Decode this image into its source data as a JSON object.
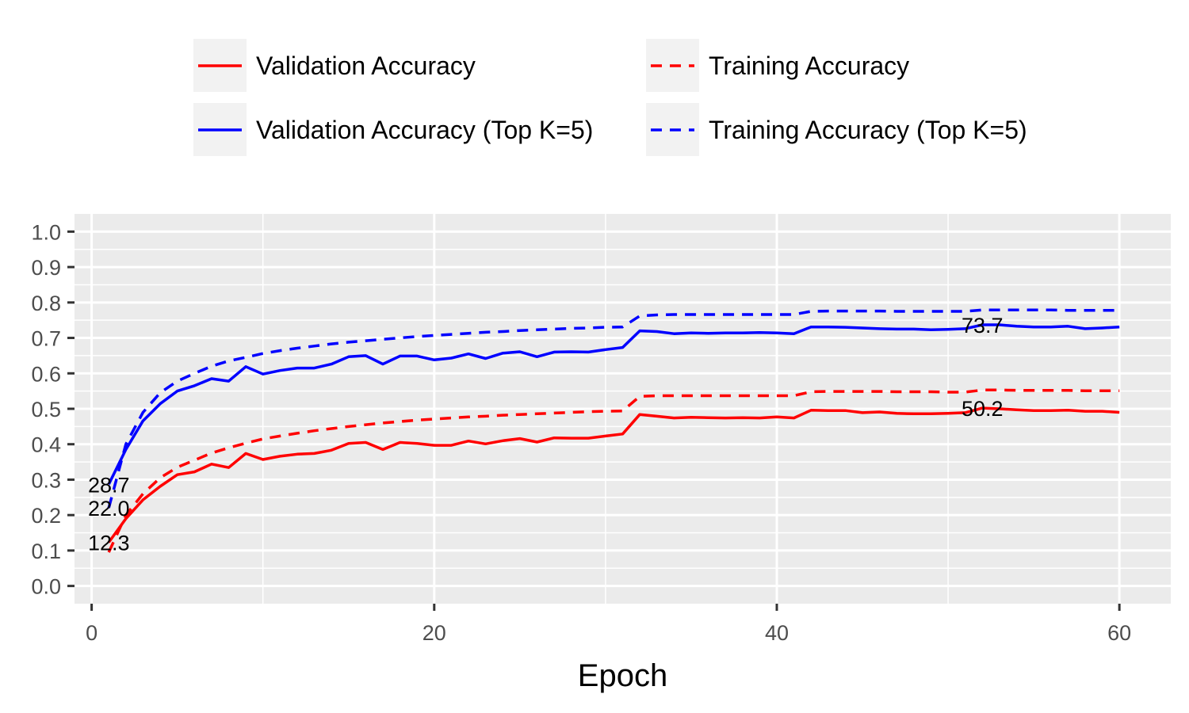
{
  "chart_data": {
    "type": "line",
    "xlabel": "Epoch",
    "ylabel": "",
    "xlim": [
      -1,
      63
    ],
    "ylim": [
      -0.05,
      1.05
    ],
    "x_ticks": [
      0,
      20,
      40,
      60
    ],
    "x_tick_labels": [
      "0",
      "20",
      "40",
      "60"
    ],
    "y_ticks": [
      0.0,
      0.1,
      0.2,
      0.3,
      0.4,
      0.5,
      0.6,
      0.7,
      0.8,
      0.9,
      1.0
    ],
    "y_tick_labels": [
      "0.0",
      "0.1",
      "0.2",
      "0.3",
      "0.4",
      "0.5",
      "0.6",
      "0.7",
      "0.8",
      "0.9",
      "1.0"
    ],
    "grid": true,
    "legend_position": "top",
    "panel_background": "#ebebeb",
    "series": [
      {
        "name": "Validation Accuracy",
        "color": "#ff0000",
        "dash": "solid",
        "x": [
          1,
          2,
          3,
          4,
          5,
          6,
          7,
          8,
          9,
          10,
          11,
          12,
          13,
          14,
          15,
          16,
          17,
          18,
          19,
          20,
          21,
          22,
          23,
          24,
          25,
          26,
          27,
          28,
          29,
          30,
          31,
          32,
          33,
          34,
          35,
          36,
          37,
          38,
          39,
          40,
          41,
          42,
          43,
          44,
          45,
          46,
          47,
          48,
          49,
          50,
          51,
          52,
          53,
          54,
          55,
          56,
          57,
          58,
          59,
          60
        ],
        "values": [
          0.123,
          0.19,
          0.243,
          0.281,
          0.314,
          0.322,
          0.344,
          0.334,
          0.374,
          0.357,
          0.366,
          0.372,
          0.374,
          0.383,
          0.402,
          0.405,
          0.385,
          0.405,
          0.402,
          0.397,
          0.397,
          0.409,
          0.401,
          0.41,
          0.416,
          0.406,
          0.418,
          0.417,
          0.417,
          0.423,
          0.429,
          0.484,
          0.479,
          0.474,
          0.476,
          0.475,
          0.474,
          0.475,
          0.474,
          0.477,
          0.474,
          0.496,
          0.495,
          0.495,
          0.489,
          0.491,
          0.487,
          0.486,
          0.486,
          0.487,
          0.489,
          0.502,
          0.5,
          0.497,
          0.495,
          0.495,
          0.496,
          0.493,
          0.493,
          0.49
        ]
      },
      {
        "name": "Training Accuracy",
        "color": "#ff0000",
        "dash": "dashed",
        "x": [
          1,
          2,
          3,
          4,
          5,
          6,
          7,
          8,
          9,
          10,
          11,
          12,
          13,
          14,
          15,
          16,
          17,
          18,
          19,
          20,
          21,
          22,
          23,
          24,
          25,
          26,
          27,
          28,
          29,
          30,
          31,
          32,
          33,
          34,
          35,
          36,
          37,
          38,
          39,
          40,
          41,
          42,
          43,
          44,
          45,
          46,
          47,
          48,
          49,
          50,
          51,
          52,
          53,
          54,
          55,
          56,
          57,
          58,
          59,
          60
        ],
        "values": [
          0.095,
          0.2,
          0.26,
          0.305,
          0.335,
          0.355,
          0.375,
          0.39,
          0.403,
          0.415,
          0.423,
          0.431,
          0.438,
          0.444,
          0.45,
          0.455,
          0.46,
          0.464,
          0.468,
          0.471,
          0.474,
          0.477,
          0.479,
          0.482,
          0.484,
          0.486,
          0.488,
          0.49,
          0.492,
          0.493,
          0.494,
          0.535,
          0.537,
          0.537,
          0.537,
          0.537,
          0.537,
          0.537,
          0.537,
          0.537,
          0.537,
          0.548,
          0.549,
          0.549,
          0.549,
          0.549,
          0.548,
          0.548,
          0.548,
          0.547,
          0.547,
          0.553,
          0.553,
          0.552,
          0.552,
          0.552,
          0.552,
          0.551,
          0.551,
          0.551
        ]
      },
      {
        "name": "Validation Accuracy (Top K=5)",
        "color": "#0000ff",
        "dash": "solid",
        "x": [
          1,
          2,
          3,
          4,
          5,
          6,
          7,
          8,
          9,
          10,
          11,
          12,
          13,
          14,
          15,
          16,
          17,
          18,
          19,
          20,
          21,
          22,
          23,
          24,
          25,
          26,
          27,
          28,
          29,
          30,
          31,
          32,
          33,
          34,
          35,
          36,
          37,
          38,
          39,
          40,
          41,
          42,
          43,
          44,
          45,
          46,
          47,
          48,
          49,
          50,
          51,
          52,
          53,
          54,
          55,
          56,
          57,
          58,
          59,
          60
        ],
        "values": [
          0.287,
          0.385,
          0.466,
          0.514,
          0.55,
          0.565,
          0.585,
          0.578,
          0.619,
          0.598,
          0.608,
          0.615,
          0.615,
          0.626,
          0.647,
          0.65,
          0.626,
          0.649,
          0.649,
          0.638,
          0.643,
          0.655,
          0.642,
          0.657,
          0.661,
          0.647,
          0.66,
          0.661,
          0.66,
          0.667,
          0.673,
          0.72,
          0.718,
          0.712,
          0.714,
          0.713,
          0.714,
          0.714,
          0.715,
          0.714,
          0.712,
          0.731,
          0.731,
          0.73,
          0.728,
          0.726,
          0.725,
          0.725,
          0.723,
          0.724,
          0.726,
          0.737,
          0.737,
          0.733,
          0.731,
          0.731,
          0.733,
          0.726,
          0.728,
          0.731
        ]
      },
      {
        "name": "Training Accuracy (Top K=5)",
        "color": "#0000ff",
        "dash": "dashed",
        "x": [
          1,
          2,
          3,
          4,
          5,
          6,
          7,
          8,
          9,
          10,
          11,
          12,
          13,
          14,
          15,
          16,
          17,
          18,
          19,
          20,
          21,
          22,
          23,
          24,
          25,
          26,
          27,
          28,
          29,
          30,
          31,
          32,
          33,
          34,
          35,
          36,
          37,
          38,
          39,
          40,
          41,
          42,
          43,
          44,
          45,
          46,
          47,
          48,
          49,
          50,
          51,
          52,
          53,
          54,
          55,
          56,
          57,
          58,
          59,
          60
        ],
        "values": [
          0.22,
          0.4,
          0.49,
          0.545,
          0.578,
          0.6,
          0.62,
          0.635,
          0.645,
          0.656,
          0.664,
          0.671,
          0.677,
          0.683,
          0.688,
          0.692,
          0.696,
          0.7,
          0.704,
          0.707,
          0.71,
          0.713,
          0.716,
          0.718,
          0.721,
          0.723,
          0.725,
          0.727,
          0.728,
          0.73,
          0.731,
          0.762,
          0.765,
          0.766,
          0.766,
          0.766,
          0.766,
          0.766,
          0.766,
          0.766,
          0.766,
          0.775,
          0.776,
          0.776,
          0.776,
          0.776,
          0.775,
          0.775,
          0.775,
          0.775,
          0.775,
          0.779,
          0.779,
          0.779,
          0.779,
          0.779,
          0.778,
          0.778,
          0.778,
          0.778
        ]
      }
    ],
    "annotations": [
      {
        "text": "28.7",
        "x": 1,
        "y": 0.287
      },
      {
        "text": "22.0",
        "x": 1,
        "y": 0.22
      },
      {
        "text": "12.3",
        "x": 1,
        "y": 0.123
      },
      {
        "text": "73.7",
        "x": 52,
        "y": 0.737
      },
      {
        "text": "50.2",
        "x": 52,
        "y": 0.502
      }
    ]
  }
}
